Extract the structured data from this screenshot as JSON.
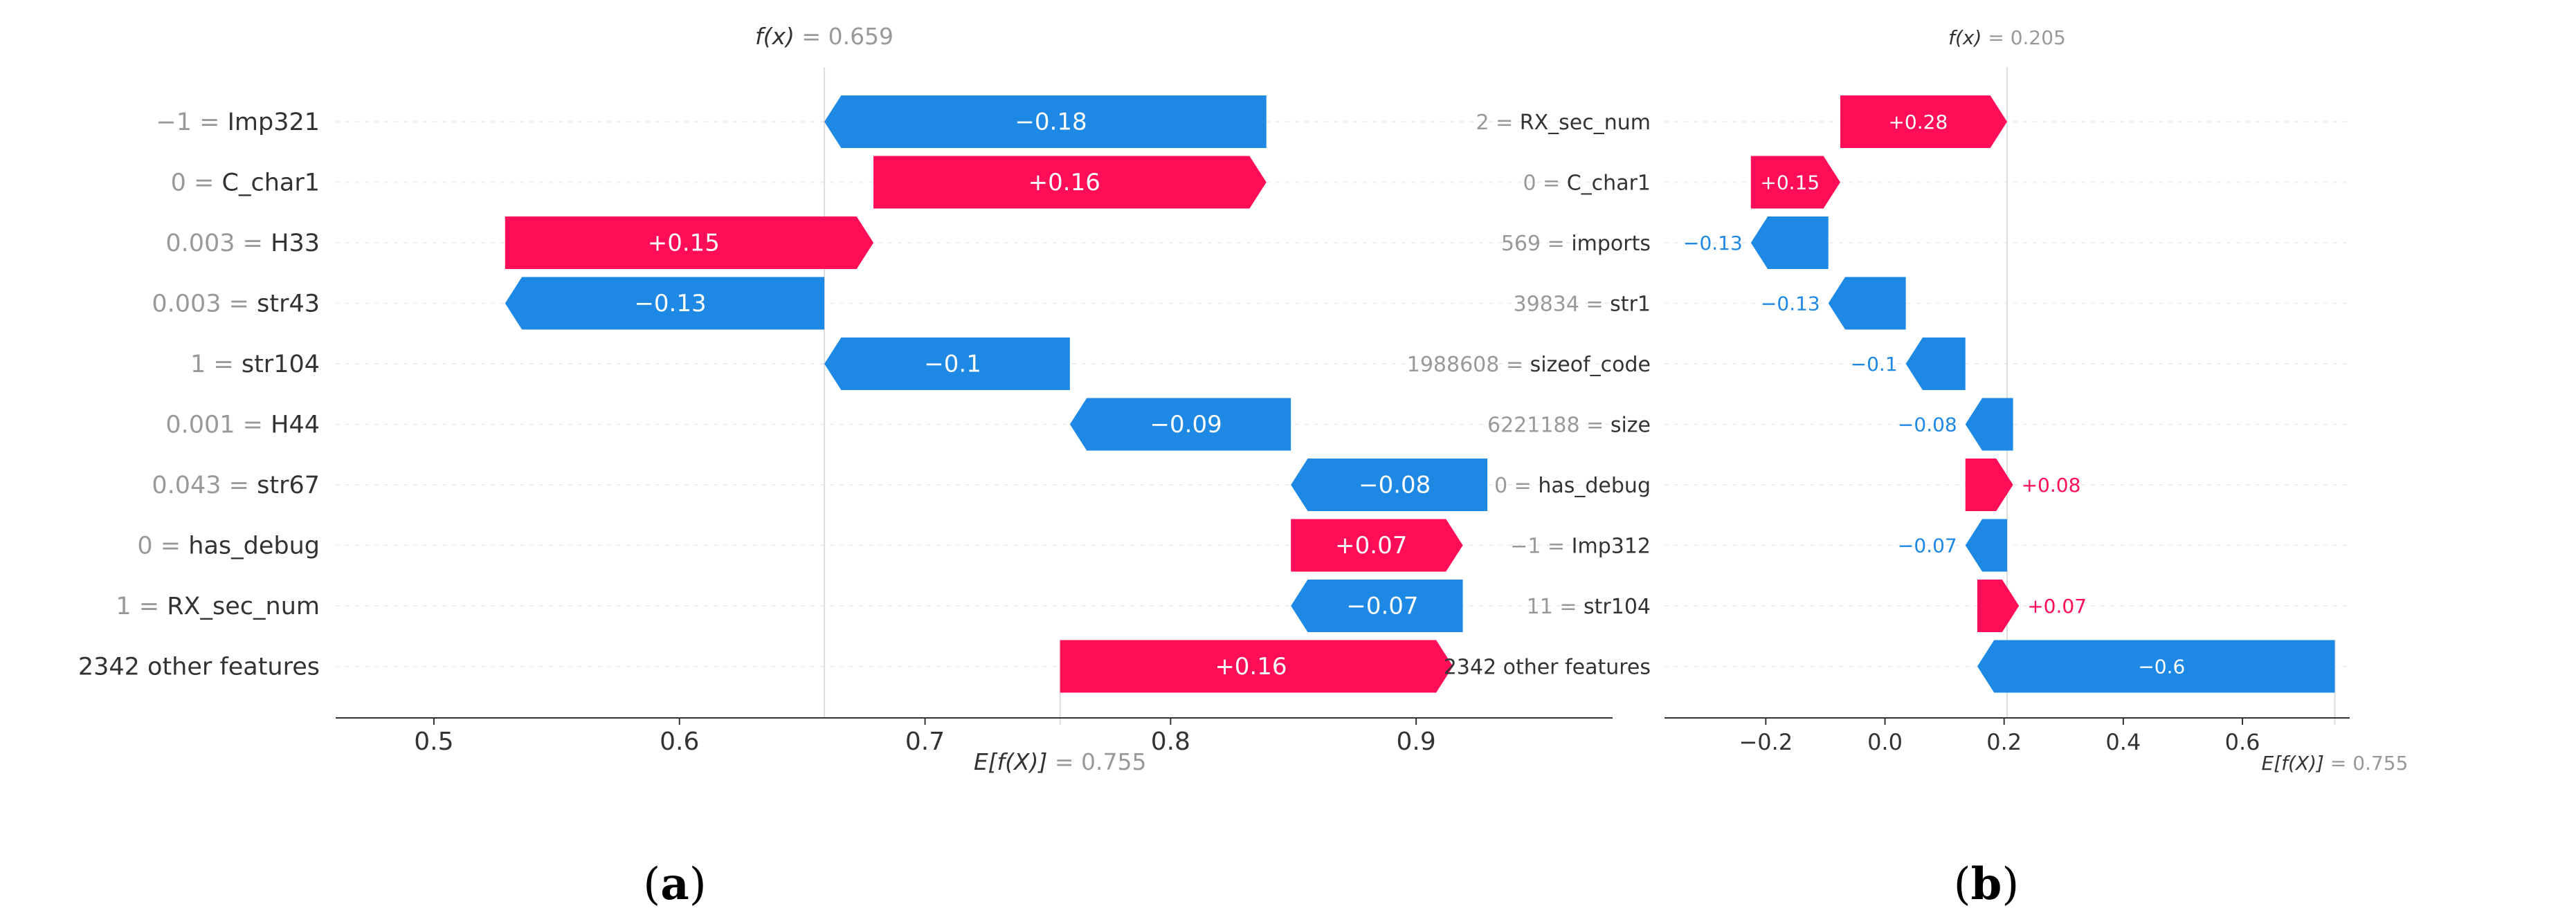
{
  "colors": {
    "positive": "#ff0d57",
    "negative": "#1e88e5",
    "axis": "#333333",
    "grid": "#eeeeee",
    "label": "#333333",
    "value_gray": "#999999",
    "caption": "#000000"
  },
  "chart_data": [
    {
      "type": "waterfall",
      "panel_label": "(a)",
      "fx_label": "f(x)",
      "fx_value_text": "= 0.659",
      "efx_label": "E[f(X)]",
      "efx_value_text": "= 0.755",
      "fx": 0.659,
      "base_value": 0.755,
      "xlim": [
        0.46,
        0.98
      ],
      "xticks": [
        0.5,
        0.6,
        0.7,
        0.8,
        0.9
      ],
      "xtick_labels": [
        "0.5",
        "0.6",
        "0.7",
        "0.8",
        "0.9"
      ],
      "rows": [
        {
          "feature_value": "−1",
          "feature": "Imp321",
          "start": 0.659,
          "end": 0.839,
          "label": "−0.18",
          "sign": "neg"
        },
        {
          "feature_value": "0",
          "feature": "C_char1",
          "start": 0.679,
          "end": 0.839,
          "label": "+0.16",
          "sign": "pos"
        },
        {
          "feature_value": "0.003",
          "feature": "H33",
          "start": 0.529,
          "end": 0.679,
          "label": "+0.15",
          "sign": "pos"
        },
        {
          "feature_value": "0.003",
          "feature": "str43",
          "start": 0.529,
          "end": 0.659,
          "label": "−0.13",
          "sign": "neg"
        },
        {
          "feature_value": "1",
          "feature": "str104",
          "start": 0.659,
          "end": 0.759,
          "label": "−0.1",
          "sign": "neg"
        },
        {
          "feature_value": "0.001",
          "feature": "H44",
          "start": 0.759,
          "end": 0.849,
          "label": "−0.09",
          "sign": "neg"
        },
        {
          "feature_value": "0.043",
          "feature": "str67",
          "start": 0.849,
          "end": 0.929,
          "label": "−0.08",
          "sign": "neg"
        },
        {
          "feature_value": "0",
          "feature": "has_debug",
          "start": 0.849,
          "end": 0.919,
          "label": "+0.07",
          "sign": "pos"
        },
        {
          "feature_value": "1",
          "feature": "RX_sec_num",
          "start": 0.849,
          "end": 0.919,
          "label": "−0.07",
          "sign": "neg"
        },
        {
          "feature_value": "",
          "feature": "2342 other features",
          "start": 0.755,
          "end": 0.915,
          "label": "+0.16",
          "sign": "pos"
        }
      ]
    },
    {
      "type": "waterfall",
      "panel_label": "(b)",
      "fx_label": "f(x)",
      "fx_value_text": "= 0.205",
      "efx_label": "E[f(X)]",
      "efx_value_text": "= 0.755",
      "fx": 0.205,
      "base_value": 0.755,
      "xlim": [
        -0.37,
        0.78
      ],
      "xticks": [
        -0.2,
        0.0,
        0.2,
        0.4,
        0.6
      ],
      "xtick_labels": [
        "−0.2",
        "0.0",
        "0.2",
        "0.4",
        "0.6"
      ],
      "rows": [
        {
          "feature_value": "2",
          "feature": "RX_sec_num",
          "start": -0.075,
          "end": 0.205,
          "label": "+0.28",
          "sign": "pos"
        },
        {
          "feature_value": "0",
          "feature": "C_char1",
          "start": -0.225,
          "end": -0.075,
          "label": "+0.15",
          "sign": "pos"
        },
        {
          "feature_value": "569",
          "feature": "imports",
          "start": -0.225,
          "end": -0.095,
          "label": "−0.13",
          "sign": "neg"
        },
        {
          "feature_value": "39834",
          "feature": "str1",
          "start": -0.095,
          "end": 0.035,
          "label": "−0.13",
          "sign": "neg"
        },
        {
          "feature_value": "1988608",
          "feature": "sizeof_code",
          "start": 0.035,
          "end": 0.135,
          "label": "−0.1",
          "sign": "neg"
        },
        {
          "feature_value": "6221188",
          "feature": "size",
          "start": 0.135,
          "end": 0.215,
          "label": "−0.08",
          "sign": "neg"
        },
        {
          "feature_value": "0",
          "feature": "has_debug",
          "start": 0.135,
          "end": 0.215,
          "label": "+0.08",
          "sign": "pos"
        },
        {
          "feature_value": "−1",
          "feature": "Imp312",
          "start": 0.135,
          "end": 0.205,
          "label": "−0.07",
          "sign": "neg"
        },
        {
          "feature_value": "11",
          "feature": "str104",
          "start": 0.155,
          "end": 0.225,
          "label": "+0.07",
          "sign": "pos"
        },
        {
          "feature_value": "",
          "feature": "2342 other features",
          "start": 0.155,
          "end": 0.755,
          "label": "−0.6",
          "sign": "neg"
        }
      ]
    }
  ]
}
